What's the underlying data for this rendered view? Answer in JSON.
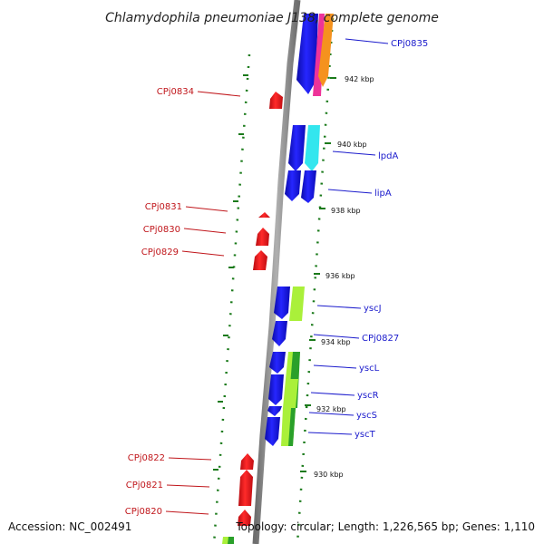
{
  "title": "Chlamydophila pneumoniae J138, complete genome",
  "footer": {
    "accession": "Accession: NC_002491",
    "summary": "Topology: circular; Length: 1,226,565 bp; Genes: 1,110"
  },
  "colors": {
    "backbone": "#8a8a8a",
    "tick": "#1a7a1a",
    "reverse_strand": "#e8141b",
    "forward_strand": "#1414e6",
    "label_reverse": "#c0161b",
    "label_forward": "#1a1acc",
    "cds_cyan": "#33e6ee",
    "cds_lime": "#aaf03a",
    "cds_green": "#2aa02a",
    "cds_pink": "#ee3399",
    "cds_orange": "#f5921e"
  },
  "kbp_labels": [
    "942 kbp",
    "940 kbp",
    "938 kbp",
    "936 kbp",
    "934 kbp",
    "932 kbp",
    "930 kbp"
  ],
  "genes_reverse": [
    {
      "name": "CPj0834"
    },
    {
      "name": "CPj0831"
    },
    {
      "name": "CPj0830"
    },
    {
      "name": "CPj0829"
    },
    {
      "name": "CPj0822"
    },
    {
      "name": "CPj0821"
    },
    {
      "name": "CPj0820"
    }
  ],
  "genes_forward": [
    {
      "name": "CPj0835"
    },
    {
      "name": "lpdA"
    },
    {
      "name": "lipA"
    },
    {
      "name": "yscJ"
    },
    {
      "name": "CPj0827"
    },
    {
      "name": "yscL"
    },
    {
      "name": "yscR"
    },
    {
      "name": "yscS"
    },
    {
      "name": "yscT"
    }
  ]
}
